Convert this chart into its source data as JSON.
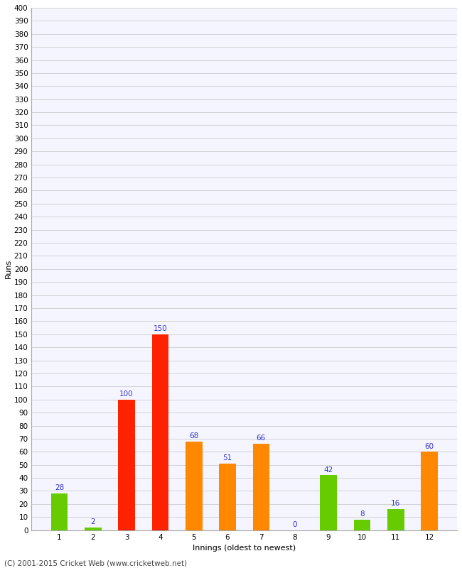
{
  "xlabel": "Innings (oldest to newest)",
  "ylabel": "Runs",
  "categories": [
    1,
    2,
    3,
    4,
    5,
    6,
    7,
    8,
    9,
    10,
    11,
    12
  ],
  "values": [
    28,
    2,
    100,
    150,
    68,
    51,
    66,
    0,
    42,
    8,
    16,
    60
  ],
  "bar_colors": [
    "#66cc00",
    "#66cc00",
    "#ff2200",
    "#ff2200",
    "#ff8800",
    "#ff8800",
    "#ff8800",
    "#ff8800",
    "#66cc00",
    "#66cc00",
    "#66cc00",
    "#ff8800"
  ],
  "ylim": [
    0,
    400
  ],
  "ytick_step": 10,
  "label_color": "#3333cc",
  "background_color": "#ffffff",
  "plot_bg_color": "#f5f5ff",
  "grid_color": "#cccccc",
  "footer": "(C) 2001-2015 Cricket Web (www.cricketweb.net)",
  "bar_width": 0.5,
  "label_fontsize": 7.5,
  "tick_fontsize": 7.5,
  "xlabel_fontsize": 8,
  "ylabel_fontsize": 8,
  "footer_fontsize": 7.5
}
